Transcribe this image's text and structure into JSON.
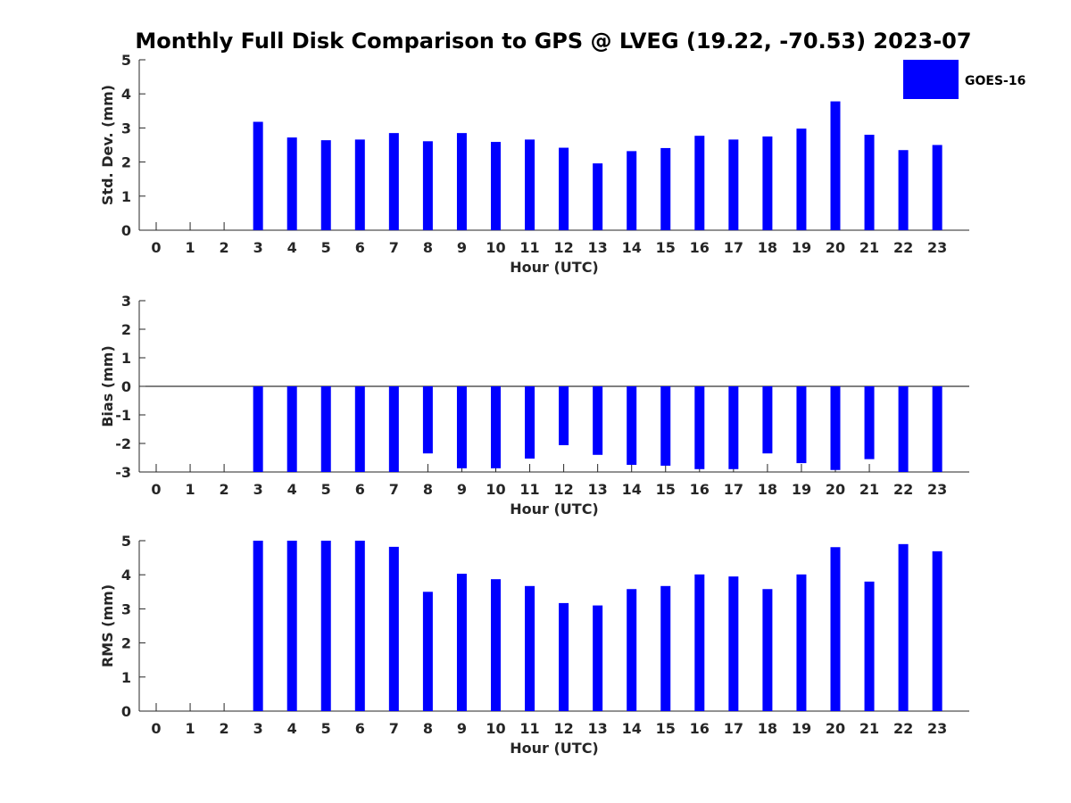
{
  "figure_title": "Monthly Full Disk Comparison to GPS @ LVEG (19.22, -70.53) 2023-07",
  "legend": {
    "label": "GOES-16",
    "color": "#0000ff"
  },
  "colors": {
    "bar": "#0000ff",
    "axis": "#262626"
  },
  "chart_data": [
    {
      "type": "bar",
      "ylabel": "Std. Dev. (mm)",
      "xlabel": "Hour (UTC)",
      "ylim": [
        0,
        5
      ],
      "yticks": [
        0,
        1,
        2,
        3,
        4,
        5
      ],
      "categories": [
        "0",
        "1",
        "2",
        "3",
        "4",
        "5",
        "6",
        "7",
        "8",
        "9",
        "10",
        "11",
        "12",
        "13",
        "14",
        "15",
        "16",
        "17",
        "18",
        "19",
        "20",
        "21",
        "22",
        "23"
      ],
      "series": [
        {
          "name": "GOES-16",
          "values": [
            null,
            null,
            null,
            3.18,
            2.72,
            2.64,
            2.66,
            2.85,
            2.61,
            2.85,
            2.59,
            2.66,
            2.42,
            1.96,
            2.32,
            2.41,
            2.77,
            2.66,
            2.75,
            2.98,
            3.78,
            2.8,
            2.35,
            2.5
          ]
        }
      ]
    },
    {
      "type": "bar",
      "ylabel": "Bias (mm)",
      "xlabel": "Hour (UTC)",
      "ylim": [
        -3,
        3
      ],
      "yticks": [
        -3,
        -2,
        -1,
        0,
        1,
        2,
        3
      ],
      "categories": [
        "0",
        "1",
        "2",
        "3",
        "4",
        "5",
        "6",
        "7",
        "8",
        "9",
        "10",
        "11",
        "12",
        "13",
        "14",
        "15",
        "16",
        "17",
        "18",
        "19",
        "20",
        "21",
        "22",
        "23"
      ],
      "series": [
        {
          "name": "GOES-16",
          "values": [
            null,
            null,
            null,
            -3.0,
            -3.0,
            -3.0,
            -3.0,
            -3.0,
            -2.35,
            -2.87,
            -2.87,
            -2.53,
            -2.06,
            -2.4,
            -2.75,
            -2.78,
            -2.9,
            -2.9,
            -2.35,
            -2.69,
            -2.93,
            -2.55,
            -3.0,
            -3.0
          ]
        }
      ]
    },
    {
      "type": "bar",
      "ylabel": "RMS (mm)",
      "xlabel": "Hour (UTC)",
      "ylim": [
        0,
        5
      ],
      "yticks": [
        0,
        1,
        2,
        3,
        4,
        5
      ],
      "categories": [
        "0",
        "1",
        "2",
        "3",
        "4",
        "5",
        "6",
        "7",
        "8",
        "9",
        "10",
        "11",
        "12",
        "13",
        "14",
        "15",
        "16",
        "17",
        "18",
        "19",
        "20",
        "21",
        "22",
        "23"
      ],
      "series": [
        {
          "name": "GOES-16",
          "values": [
            null,
            null,
            null,
            5.0,
            5.0,
            5.0,
            5.0,
            4.82,
            3.5,
            4.03,
            3.87,
            3.67,
            3.17,
            3.1,
            3.58,
            3.67,
            4.01,
            3.95,
            3.58,
            4.01,
            4.81,
            3.8,
            4.9,
            4.69
          ]
        }
      ]
    }
  ]
}
